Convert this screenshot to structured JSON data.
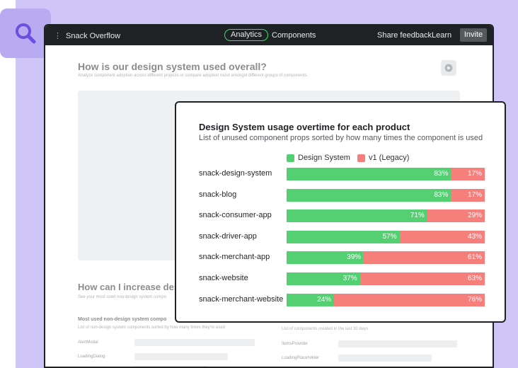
{
  "colors": {
    "design_system": "#54cf72",
    "legacy": "#f77f7b",
    "accent": "#3ddc6c"
  },
  "topbar": {
    "app_name": "Snack Overflow",
    "tab_analytics": "Analytics",
    "tab_components": "Components",
    "share_feedback": "Share feedback",
    "learn": "Learn",
    "invite": "Invite"
  },
  "background": {
    "title": "How is our design system used overall?",
    "subtitle": "Analyze component adoption across different projects or compare adoption trend amongst different groups of components.",
    "title2": "How can I increase desig",
    "subtitle2": "See your most used non-design system compo",
    "col1_title": "Most used non-design system compo",
    "col1_subtitle": "List of non-design system components sorted by how many times they're used",
    "col2_subtitle": "List of components created in the last 30 days",
    "col1_rows": [
      "AlertModal",
      "LoadingDialog"
    ],
    "col2_rows": [
      "ItemsProvider",
      "LoadingPlaceholder"
    ]
  },
  "chart_data": {
    "type": "bar",
    "orientation": "horizontal-stacked-percent",
    "title": "Design System usage overtime for each product",
    "subtitle": "List of unused component props sorted by how many times the component is used",
    "legend_position": "top",
    "categories": [
      "snack-design-system",
      "snack-blog",
      "snack-consumer-app",
      "snack-driver-app",
      "snack-merchant-app",
      "snack-website",
      "snack-merchant-website"
    ],
    "series": [
      {
        "name": "Design System",
        "values": [
          83,
          83,
          71,
          57,
          39,
          37,
          24
        ],
        "labels": [
          "83%",
          "83%",
          "71%",
          "57%",
          "39%",
          "37%",
          "24%"
        ]
      },
      {
        "name": "v1 (Legacy)",
        "values": [
          17,
          17,
          29,
          43,
          61,
          63,
          76
        ],
        "labels": [
          "17%",
          "17%",
          "29%",
          "43%",
          "61%",
          "63%",
          "76%"
        ]
      }
    ]
  }
}
